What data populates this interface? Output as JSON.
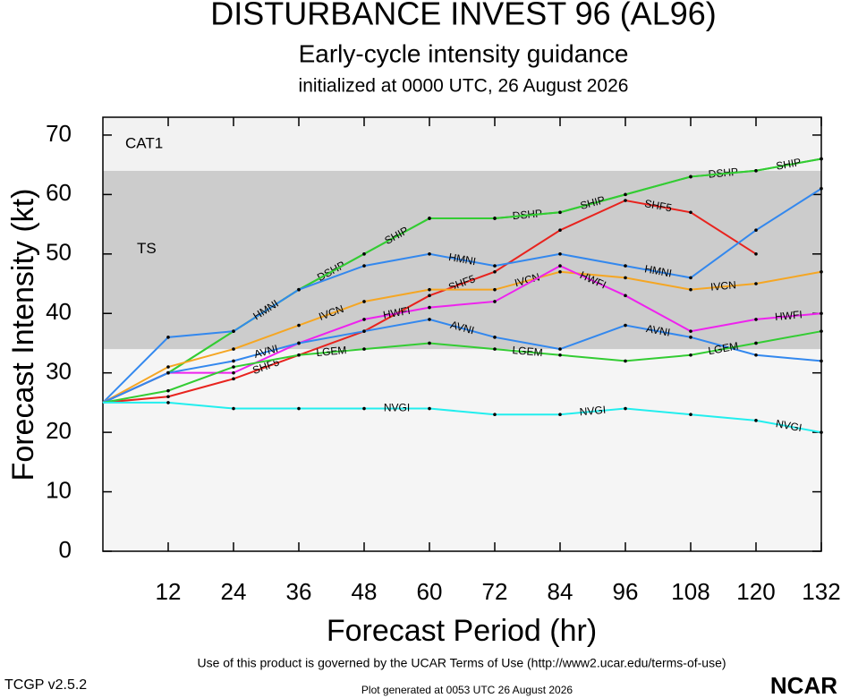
{
  "chart_data": {
    "type": "line",
    "title": "DISTURBANCE INVEST 96 (AL96)",
    "subtitle": "Early-cycle intensity guidance",
    "init_label": "initialized at 0000 UTC, 26 August 2026",
    "x_label": "Forecast Period (hr)",
    "y_label": "Forecast Intensity (kt)",
    "terms": "Use of this product is governed by the UCAR Terms of Use (http://www2.ucar.edu/terms-of-use)",
    "version": "TCGP v2.5.2",
    "generated": "Plot generated at 0053 UTC   26 August 2026",
    "logo": "NCAR",
    "bands": [
      {
        "label": "TS",
        "from": 34,
        "to": 64,
        "color": "#cccccc"
      },
      {
        "label": "CAT1",
        "from": 64,
        "to": 73,
        "color": "#f2f2f2"
      }
    ],
    "x": [
      0,
      12,
      24,
      36,
      48,
      60,
      72,
      84,
      96,
      108,
      120,
      132
    ],
    "xlim": [
      0,
      132
    ],
    "xticks": [
      12,
      24,
      36,
      48,
      60,
      72,
      84,
      96,
      108,
      120,
      132
    ],
    "ylim": [
      0,
      73
    ],
    "yticks": [
      0,
      10,
      20,
      30,
      40,
      50,
      60,
      70
    ],
    "series": [
      {
        "name": "SHF5",
        "color": "#e8231e",
        "values": [
          25,
          26,
          29,
          33,
          37,
          43,
          47,
          54,
          59,
          57,
          50,
          null
        ]
      },
      {
        "name": "DSHP",
        "color": "#33cc33",
        "values": [
          25,
          30,
          37,
          44,
          50,
          56,
          56,
          57,
          60,
          63,
          64,
          66
        ]
      },
      {
        "name": "SHIP",
        "color": "#33cc33",
        "values": [
          25,
          30,
          37,
          44,
          50,
          56,
          56,
          57,
          60,
          63,
          64,
          66
        ]
      },
      {
        "name": "HMNI",
        "color": "#3388ee",
        "values": [
          25,
          36,
          37,
          44,
          48,
          50,
          48,
          50,
          48,
          46,
          54,
          61
        ]
      },
      {
        "name": "IVCN",
        "color": "#f5a623",
        "values": [
          25,
          31,
          34,
          38,
          42,
          44,
          44,
          47,
          46,
          44,
          45,
          47
        ]
      },
      {
        "name": "HWFI",
        "color": "#ee22ee",
        "values": [
          25,
          30,
          30,
          35,
          39,
          41,
          42,
          48,
          43,
          37,
          39,
          40
        ]
      },
      {
        "name": "AVNI",
        "color": "#3388ee",
        "values": [
          25,
          30,
          32,
          35,
          37,
          39,
          36,
          34,
          38,
          36,
          33,
          32
        ]
      },
      {
        "name": "LGEM",
        "color": "#33cc33",
        "values": [
          25,
          27,
          31,
          33,
          34,
          35,
          34,
          33,
          32,
          33,
          35,
          37
        ]
      },
      {
        "name": "NVGI",
        "color": "#22eeee",
        "values": [
          25,
          25,
          24,
          24,
          24,
          24,
          23,
          23,
          24,
          23,
          22,
          20
        ]
      }
    ]
  }
}
